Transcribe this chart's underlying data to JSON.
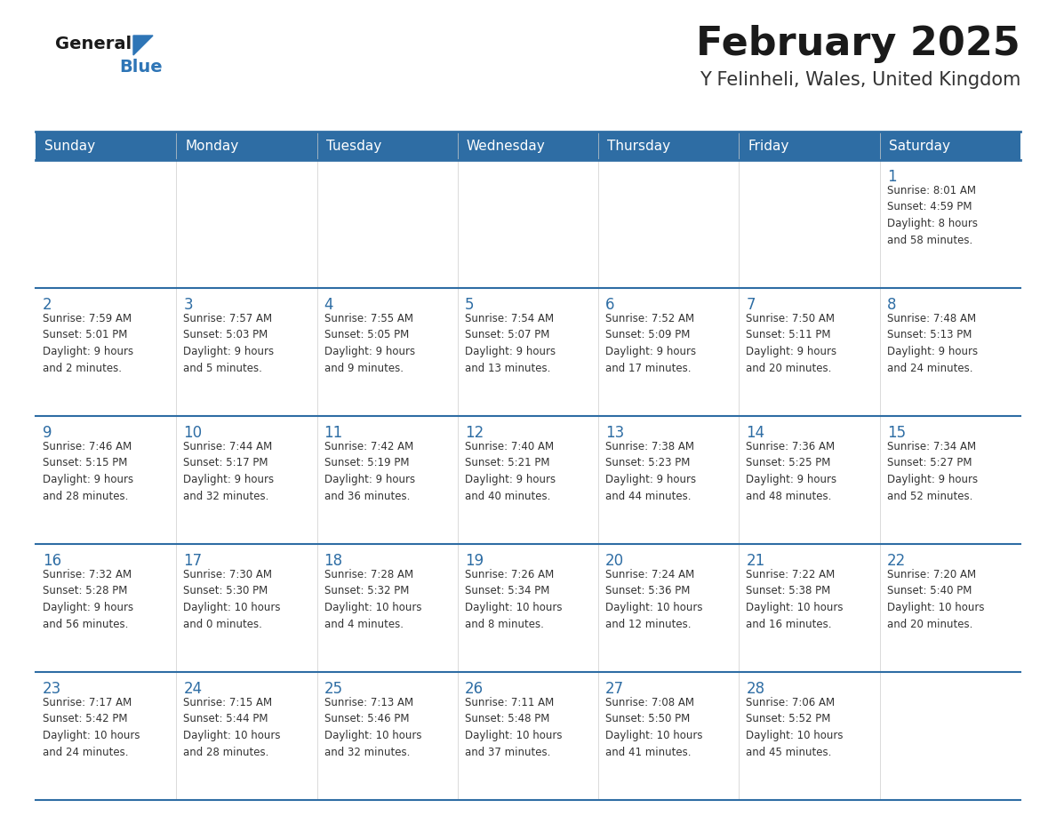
{
  "title": "February 2025",
  "subtitle": "Y Felinheli, Wales, United Kingdom",
  "header_bg": "#2E6DA4",
  "header_text": "#FFFFFF",
  "cell_bg": "#FFFFFF",
  "grid_line_color": "#2E6DA4",
  "day_headers": [
    "Sunday",
    "Monday",
    "Tuesday",
    "Wednesday",
    "Thursday",
    "Friday",
    "Saturday"
  ],
  "title_color": "#1a1a1a",
  "subtitle_color": "#333333",
  "day_num_color": "#2E6DA4",
  "info_color": "#333333",
  "logo_general_color": "#1a1a1a",
  "logo_blue_color": "#2E75B6",
  "weeks": [
    [
      {
        "day": "",
        "info": ""
      },
      {
        "day": "",
        "info": ""
      },
      {
        "day": "",
        "info": ""
      },
      {
        "day": "",
        "info": ""
      },
      {
        "day": "",
        "info": ""
      },
      {
        "day": "",
        "info": ""
      },
      {
        "day": "1",
        "info": "Sunrise: 8:01 AM\nSunset: 4:59 PM\nDaylight: 8 hours\nand 58 minutes."
      }
    ],
    [
      {
        "day": "2",
        "info": "Sunrise: 7:59 AM\nSunset: 5:01 PM\nDaylight: 9 hours\nand 2 minutes."
      },
      {
        "day": "3",
        "info": "Sunrise: 7:57 AM\nSunset: 5:03 PM\nDaylight: 9 hours\nand 5 minutes."
      },
      {
        "day": "4",
        "info": "Sunrise: 7:55 AM\nSunset: 5:05 PM\nDaylight: 9 hours\nand 9 minutes."
      },
      {
        "day": "5",
        "info": "Sunrise: 7:54 AM\nSunset: 5:07 PM\nDaylight: 9 hours\nand 13 minutes."
      },
      {
        "day": "6",
        "info": "Sunrise: 7:52 AM\nSunset: 5:09 PM\nDaylight: 9 hours\nand 17 minutes."
      },
      {
        "day": "7",
        "info": "Sunrise: 7:50 AM\nSunset: 5:11 PM\nDaylight: 9 hours\nand 20 minutes."
      },
      {
        "day": "8",
        "info": "Sunrise: 7:48 AM\nSunset: 5:13 PM\nDaylight: 9 hours\nand 24 minutes."
      }
    ],
    [
      {
        "day": "9",
        "info": "Sunrise: 7:46 AM\nSunset: 5:15 PM\nDaylight: 9 hours\nand 28 minutes."
      },
      {
        "day": "10",
        "info": "Sunrise: 7:44 AM\nSunset: 5:17 PM\nDaylight: 9 hours\nand 32 minutes."
      },
      {
        "day": "11",
        "info": "Sunrise: 7:42 AM\nSunset: 5:19 PM\nDaylight: 9 hours\nand 36 minutes."
      },
      {
        "day": "12",
        "info": "Sunrise: 7:40 AM\nSunset: 5:21 PM\nDaylight: 9 hours\nand 40 minutes."
      },
      {
        "day": "13",
        "info": "Sunrise: 7:38 AM\nSunset: 5:23 PM\nDaylight: 9 hours\nand 44 minutes."
      },
      {
        "day": "14",
        "info": "Sunrise: 7:36 AM\nSunset: 5:25 PM\nDaylight: 9 hours\nand 48 minutes."
      },
      {
        "day": "15",
        "info": "Sunrise: 7:34 AM\nSunset: 5:27 PM\nDaylight: 9 hours\nand 52 minutes."
      }
    ],
    [
      {
        "day": "16",
        "info": "Sunrise: 7:32 AM\nSunset: 5:28 PM\nDaylight: 9 hours\nand 56 minutes."
      },
      {
        "day": "17",
        "info": "Sunrise: 7:30 AM\nSunset: 5:30 PM\nDaylight: 10 hours\nand 0 minutes."
      },
      {
        "day": "18",
        "info": "Sunrise: 7:28 AM\nSunset: 5:32 PM\nDaylight: 10 hours\nand 4 minutes."
      },
      {
        "day": "19",
        "info": "Sunrise: 7:26 AM\nSunset: 5:34 PM\nDaylight: 10 hours\nand 8 minutes."
      },
      {
        "day": "20",
        "info": "Sunrise: 7:24 AM\nSunset: 5:36 PM\nDaylight: 10 hours\nand 12 minutes."
      },
      {
        "day": "21",
        "info": "Sunrise: 7:22 AM\nSunset: 5:38 PM\nDaylight: 10 hours\nand 16 minutes."
      },
      {
        "day": "22",
        "info": "Sunrise: 7:20 AM\nSunset: 5:40 PM\nDaylight: 10 hours\nand 20 minutes."
      }
    ],
    [
      {
        "day": "23",
        "info": "Sunrise: 7:17 AM\nSunset: 5:42 PM\nDaylight: 10 hours\nand 24 minutes."
      },
      {
        "day": "24",
        "info": "Sunrise: 7:15 AM\nSunset: 5:44 PM\nDaylight: 10 hours\nand 28 minutes."
      },
      {
        "day": "25",
        "info": "Sunrise: 7:13 AM\nSunset: 5:46 PM\nDaylight: 10 hours\nand 32 minutes."
      },
      {
        "day": "26",
        "info": "Sunrise: 7:11 AM\nSunset: 5:48 PM\nDaylight: 10 hours\nand 37 minutes."
      },
      {
        "day": "27",
        "info": "Sunrise: 7:08 AM\nSunset: 5:50 PM\nDaylight: 10 hours\nand 41 minutes."
      },
      {
        "day": "28",
        "info": "Sunrise: 7:06 AM\nSunset: 5:52 PM\nDaylight: 10 hours\nand 45 minutes."
      },
      {
        "day": "",
        "info": ""
      }
    ]
  ]
}
